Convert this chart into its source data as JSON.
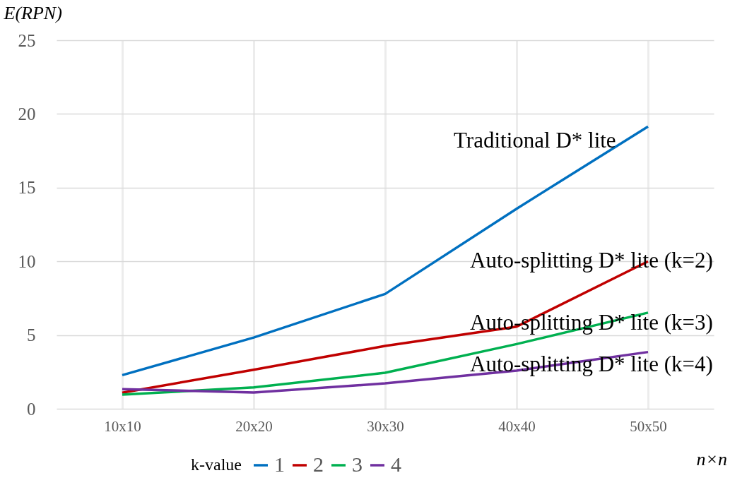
{
  "chart_data": {
    "type": "line",
    "xlabel": "n×n",
    "ylabel": "E(RPN)",
    "legend_title": "k-value",
    "legend": "bottom",
    "grid": true,
    "marker": "none",
    "line_style": "solid",
    "categories": [
      "10x10",
      "20x20",
      "30x30",
      "40x40",
      "50x50"
    ],
    "ylim": [
      0,
      25
    ],
    "yticks": [
      0,
      5,
      10,
      15,
      20,
      25
    ],
    "series": [
      {
        "name": "1",
        "color": "#0070c0",
        "values": [
          2.28,
          4.83,
          7.79,
          13.57,
          19.15
        ]
      },
      {
        "name": "2",
        "color": "#c00000",
        "values": [
          1.09,
          2.65,
          4.26,
          5.57,
          10.0
        ]
      },
      {
        "name": "3",
        "color": "#00b050",
        "values": [
          0.96,
          1.45,
          2.44,
          4.39,
          6.52
        ]
      },
      {
        "name": "4",
        "color": "#7030a0",
        "values": [
          1.33,
          1.1,
          1.72,
          2.59,
          3.85
        ]
      }
    ],
    "annotations": [
      "Traditional D* lite",
      "Auto-splitting D* lite (k=2)",
      "Auto-splitting D* lite (k=3)",
      "Auto-splitting D* lite (k=4)"
    ]
  }
}
